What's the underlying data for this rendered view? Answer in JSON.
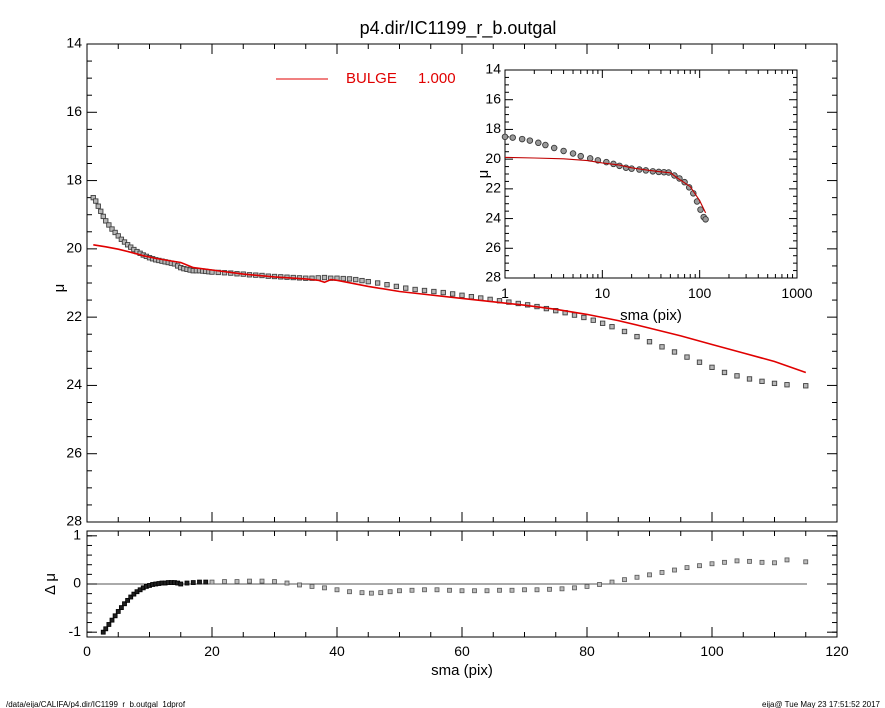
{
  "chart_data": [
    {
      "type": "scatter",
      "panel": "main",
      "title": "p4.dir/IC1199_r_b.outgal",
      "xlabel": "",
      "ylabel": "μ",
      "xlim": [
        0,
        120
      ],
      "ylim": [
        28,
        14
      ],
      "y_reversed": true,
      "x_ticks": [
        0,
        20,
        40,
        60,
        80,
        100,
        120
      ],
      "y_ticks": [
        14,
        16,
        18,
        20,
        22,
        24,
        26,
        28
      ],
      "legend": {
        "position": "top-center",
        "label": "BULGE",
        "value": "1.000",
        "color": "#e00000"
      },
      "series": [
        {
          "name": "",
          "kind": "points",
          "color": "#707070",
          "x": [
            1.0,
            1.4,
            1.8,
            2.2,
            2.6,
            3.0,
            3.5,
            4.0,
            4.5,
            5.0,
            5.5,
            6.0,
            6.5,
            7.0,
            7.5,
            8.0,
            8.5,
            9.0,
            9.5,
            10.0,
            10.5,
            11.0,
            11.5,
            12.0,
            12.5,
            13.0,
            13.5,
            14.0,
            14.5,
            15.0,
            15.5,
            16.0,
            16.5,
            17.0,
            17.5,
            18.0,
            18.5,
            19.0,
            19.5,
            20.0,
            21.0,
            22.0,
            23.0,
            24.0,
            25.0,
            26.0,
            27.0,
            28.0,
            29.0,
            30.0,
            31.0,
            32.0,
            33.0,
            34.0,
            35.0,
            36.0,
            37.0,
            38.0,
            39.0,
            40.0,
            41.0,
            42.0,
            43.0,
            44.0,
            45.0,
            46.5,
            48.0,
            49.5,
            51.0,
            52.5,
            54.0,
            55.5,
            57.0,
            58.5,
            60.0,
            61.5,
            63.0,
            64.5,
            66.0,
            67.5,
            69.0,
            70.5,
            72.0,
            73.5,
            75.0,
            76.5,
            78.0,
            79.5,
            81.0,
            82.5,
            84.0,
            86.0,
            88.0,
            90.0,
            92.0,
            94.0,
            96.0,
            98.0,
            100.0,
            102.0,
            104.0,
            106.0,
            108.0,
            110.0,
            112.0,
            115.0
          ],
          "y": [
            18.5,
            18.6,
            18.75,
            18.9,
            19.05,
            19.18,
            19.3,
            19.42,
            19.52,
            19.62,
            19.72,
            19.8,
            19.88,
            19.95,
            20.02,
            20.08,
            20.13,
            20.18,
            20.22,
            20.26,
            20.29,
            20.32,
            20.34,
            20.36,
            20.38,
            20.4,
            20.42,
            20.44,
            20.5,
            20.55,
            20.58,
            20.6,
            20.62,
            20.64,
            20.64,
            20.64,
            20.65,
            20.66,
            20.67,
            20.68,
            20.69,
            20.7,
            20.71,
            20.73,
            20.74,
            20.76,
            20.77,
            20.78,
            20.8,
            20.81,
            20.82,
            20.83,
            20.84,
            20.85,
            20.86,
            20.86,
            20.85,
            20.84,
            20.86,
            20.86,
            20.87,
            20.88,
            20.9,
            20.93,
            20.96,
            21.0,
            21.05,
            21.1,
            21.15,
            21.19,
            21.22,
            21.25,
            21.28,
            21.32,
            21.36,
            21.4,
            21.44,
            21.48,
            21.52,
            21.56,
            21.6,
            21.64,
            21.69,
            21.75,
            21.81,
            21.87,
            21.94,
            22.01,
            22.09,
            22.18,
            22.28,
            22.42,
            22.57,
            22.72,
            22.87,
            23.02,
            23.17,
            23.32,
            23.47,
            23.62,
            23.72,
            23.81,
            23.88,
            23.94,
            23.98,
            24.01
          ]
        },
        {
          "name": "BULGE",
          "kind": "line",
          "color": "#e00000",
          "x": [
            1,
            3,
            5,
            7,
            9,
            11,
            13,
            15,
            17,
            20,
            25,
            30,
            35,
            37,
            38,
            39,
            40,
            45,
            50,
            55,
            60,
            65,
            70,
            75,
            80,
            85,
            90,
            95,
            100,
            105,
            110,
            115
          ],
          "y": [
            19.88,
            19.94,
            20.01,
            20.1,
            20.2,
            20.28,
            20.34,
            20.4,
            20.55,
            20.62,
            20.74,
            20.82,
            20.88,
            20.92,
            20.98,
            20.9,
            20.92,
            21.1,
            21.25,
            21.35,
            21.45,
            21.55,
            21.65,
            21.77,
            21.92,
            22.1,
            22.32,
            22.55,
            22.8,
            23.05,
            23.3,
            23.62
          ]
        }
      ]
    },
    {
      "type": "scatter",
      "panel": "residual",
      "xlabel": "sma (pix)",
      "ylabel": "Δ μ",
      "xlim": [
        0,
        120
      ],
      "ylim": [
        -1.1,
        1.1
      ],
      "x_ticks": [
        0,
        20,
        40,
        60,
        80,
        100,
        120
      ],
      "y_ticks": [
        -1,
        0,
        1
      ],
      "zero_line": true,
      "series": [
        {
          "name": "",
          "kind": "points",
          "color": "#707070",
          "x": [
            2.6,
            3.0,
            3.5,
            4.0,
            4.5,
            5.0,
            5.5,
            6.0,
            6.5,
            7.0,
            7.5,
            8.0,
            8.5,
            9.0,
            9.5,
            10.0,
            10.5,
            11.0,
            11.5,
            12.0,
            12.5,
            13.0,
            13.5,
            14.0,
            14.5,
            15.0,
            16.0,
            17.0,
            18.0,
            19.0,
            20.0,
            22.0,
            24.0,
            26.0,
            28.0,
            30.0,
            32.0,
            34.0,
            36.0,
            38.0,
            40.0,
            42.0,
            44.0,
            45.5,
            47.0,
            48.5,
            50.0,
            52.0,
            54.0,
            56.0,
            58.0,
            60.0,
            62.0,
            64.0,
            66.0,
            68.0,
            70.0,
            72.0,
            74.0,
            76.0,
            78.0,
            80.0,
            82.0,
            84.0,
            86.0,
            88.0,
            90.0,
            92.0,
            94.0,
            96.0,
            98.0,
            100.0,
            102.0,
            104.0,
            106.0,
            108.0,
            110.0,
            112.0,
            115.0
          ],
          "y": [
            -1.0,
            -0.93,
            -0.84,
            -0.75,
            -0.66,
            -0.57,
            -0.49,
            -0.41,
            -0.34,
            -0.27,
            -0.21,
            -0.16,
            -0.12,
            -0.08,
            -0.05,
            -0.03,
            -0.01,
            0.0,
            0.01,
            0.02,
            0.02,
            0.03,
            0.03,
            0.03,
            0.02,
            0.0,
            0.02,
            0.03,
            0.04,
            0.04,
            0.04,
            0.05,
            0.05,
            0.06,
            0.06,
            0.05,
            0.02,
            -0.02,
            -0.05,
            -0.08,
            -0.12,
            -0.16,
            -0.18,
            -0.19,
            -0.18,
            -0.16,
            -0.14,
            -0.13,
            -0.12,
            -0.12,
            -0.13,
            -0.14,
            -0.14,
            -0.14,
            -0.13,
            -0.13,
            -0.12,
            -0.12,
            -0.11,
            -0.1,
            -0.08,
            -0.05,
            -0.01,
            0.04,
            0.09,
            0.14,
            0.19,
            0.24,
            0.29,
            0.34,
            0.38,
            0.42,
            0.45,
            0.48,
            0.47,
            0.45,
            0.44,
            0.5,
            0.46
          ]
        }
      ]
    },
    {
      "type": "scatter",
      "panel": "inset",
      "xlabel": "sma (pix)",
      "ylabel": "μ",
      "x_log": true,
      "xlim": [
        1,
        1000
      ],
      "ylim": [
        28,
        14
      ],
      "x_ticks": [
        1,
        10,
        100,
        1000
      ],
      "x_tick_labels": [
        "1",
        "10",
        "100",
        "1000"
      ],
      "y_ticks": [
        14,
        16,
        18,
        20,
        22,
        24,
        26,
        28
      ],
      "series": [
        {
          "name": "",
          "kind": "points",
          "color": "#707070",
          "x": [
            1.0,
            1.2,
            1.5,
            1.8,
            2.2,
            2.6,
            3.2,
            4.0,
            5.0,
            6.0,
            7.5,
            9.0,
            11.0,
            13.0,
            15.0,
            17.5,
            20.0,
            24.0,
            28.0,
            33.0,
            38.0,
            43.0,
            48.0,
            55.0,
            62.0,
            70.0,
            78.0,
            86.0,
            94.0,
            102.0,
            110.0,
            115.0
          ],
          "y": [
            18.5,
            18.55,
            18.65,
            18.75,
            18.9,
            19.05,
            19.25,
            19.45,
            19.62,
            19.8,
            19.95,
            20.08,
            20.2,
            20.32,
            20.45,
            20.58,
            20.64,
            20.7,
            20.76,
            20.82,
            20.86,
            20.88,
            20.9,
            21.1,
            21.3,
            21.55,
            21.9,
            22.3,
            22.85,
            23.4,
            23.9,
            24.05
          ]
        },
        {
          "name": "BULGE",
          "kind": "line",
          "color": "#c00000",
          "x": [
            1,
            2,
            4,
            7,
            10,
            15,
            20,
            30,
            40,
            50,
            60,
            80,
            100,
            115
          ],
          "y": [
            19.88,
            19.92,
            19.98,
            20.1,
            20.25,
            20.4,
            20.58,
            20.75,
            20.85,
            20.92,
            21.3,
            21.85,
            22.8,
            23.62
          ]
        }
      ]
    }
  ],
  "footer": {
    "left": "/data/eija/CALIFA/p4.dir/IC1199_r_b.outgal_1dprof",
    "right": "eija@  Tue May 23 17:51:52 2017"
  }
}
